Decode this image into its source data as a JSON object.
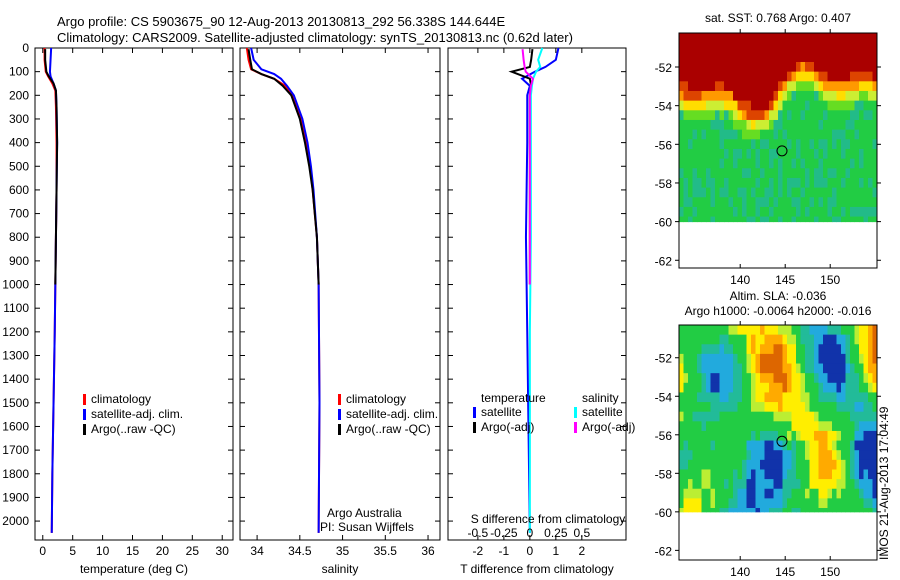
{
  "title_line1": "Argo profile: CS 5903675_90 12-Aug-2013 20130813_292 56.338S 144.644E",
  "title_line2": "Climatology: CARS2009. Satellite-adjusted climatology: synTS_20130813.nc (0.62d later)",
  "colors": {
    "climatology": "#ff0000",
    "satellite": "#0000ff",
    "argo": "#000000",
    "sal_satellite": "#00ffff",
    "sal_argo": "#ff00ff"
  },
  "chart_data": [
    {
      "type": "line",
      "name": "temperature",
      "xlabel": "temperature (deg C)",
      "ylabel": "depth",
      "xlim": [
        -1.3,
        31.8
      ],
      "ylim": [
        2080,
        0
      ],
      "xticks": [
        0,
        5,
        10,
        15,
        20,
        25,
        30
      ],
      "yticks": [
        0,
        100,
        200,
        300,
        400,
        500,
        600,
        700,
        800,
        900,
        1000,
        1100,
        1200,
        1300,
        1400,
        1500,
        1600,
        1700,
        1800,
        1900,
        2000
      ],
      "legend": [
        "climatology",
        "satellite-adj. clim.",
        "Argo(..raw -QC)"
      ],
      "series": [
        {
          "name": "climatology",
          "depth": [
            0,
            50,
            100,
            120,
            150,
            180,
            250,
            400,
            600,
            800,
            1000,
            1200,
            1500,
            1800,
            2050
          ],
          "values": [
            0.3,
            0.3,
            0.5,
            0.9,
            1.6,
            2.1,
            2.2,
            2.3,
            2.3,
            2.2,
            2.1,
            2.0,
            1.8,
            1.6,
            1.5
          ]
        },
        {
          "name": "satellite-adj. clim.",
          "depth": [
            0,
            50,
            100,
            120,
            150,
            180,
            250,
            400,
            600,
            800,
            1000,
            1200,
            1500,
            1800,
            2050
          ],
          "values": [
            1.4,
            1.3,
            1.2,
            1.3,
            1.8,
            2.2,
            2.3,
            2.4,
            2.3,
            2.2,
            2.1,
            2.0,
            1.8,
            1.6,
            1.5
          ]
        },
        {
          "name": "Argo(..raw -QC)",
          "depth": [
            5,
            50,
            100,
            120,
            150,
            180,
            250,
            400,
            600,
            800,
            1000
          ],
          "values": [
            0.4,
            0.4,
            0.6,
            1.0,
            1.8,
            2.2,
            2.3,
            2.4,
            2.3,
            2.2,
            2.1
          ]
        }
      ]
    },
    {
      "type": "line",
      "name": "salinity",
      "xlabel": "salinity",
      "xlim": [
        33.8,
        36.14
      ],
      "ylim": [
        2080,
        0
      ],
      "xticks": [
        34,
        34.5,
        35,
        35.5,
        36
      ],
      "legend": [
        "climatology",
        "satellite-adj. clim.",
        "Argo(..raw -QC)"
      ],
      "annotation": [
        "Argo Australia",
        "PI: Susan Wijffels"
      ],
      "series": [
        {
          "name": "climatology",
          "depth": [
            0,
            50,
            90,
            110,
            130,
            160,
            200,
            300,
            400,
            500,
            600,
            800,
            1000,
            1500,
            2050
          ],
          "values": [
            33.88,
            33.9,
            33.93,
            34.05,
            34.2,
            34.33,
            34.42,
            34.52,
            34.58,
            34.62,
            34.65,
            34.7,
            34.72,
            34.73,
            34.72
          ]
        },
        {
          "name": "satellite-adj. clim.",
          "depth": [
            0,
            50,
            90,
            110,
            130,
            160,
            200,
            300,
            400,
            500,
            600,
            800,
            1000,
            1500,
            2050
          ],
          "values": [
            33.93,
            33.96,
            34.05,
            34.2,
            34.28,
            34.35,
            34.43,
            34.53,
            34.59,
            34.63,
            34.66,
            34.7,
            34.72,
            34.73,
            34.72
          ]
        },
        {
          "name": "Argo(..raw -QC)",
          "depth": [
            5,
            50,
            90,
            110,
            130,
            160,
            200,
            300,
            400,
            500,
            600,
            800,
            1000
          ],
          "values": [
            33.9,
            33.92,
            33.94,
            34.05,
            34.2,
            34.3,
            34.4,
            34.5,
            34.56,
            34.61,
            34.65,
            34.7,
            34.72
          ]
        }
      ]
    },
    {
      "type": "line",
      "name": "difference",
      "xlabel": "T difference from climatology",
      "xlabel2": "S difference from climatology",
      "xlim": [
        -3.15,
        3.7
      ],
      "ylim": [
        2080,
        0
      ],
      "xticks": [
        -2,
        -1,
        0,
        1,
        2
      ],
      "xticks2": [
        "-0.5",
        "-0.25",
        "0",
        "0.25",
        "0.5"
      ],
      "legend_titles": [
        "temperature",
        "salinity"
      ],
      "legend": [
        "satellite",
        "Argo(-adj)",
        "satellite",
        "Argo(-adj)"
      ],
      "series": [
        {
          "name": "temperature satellite",
          "depth": [
            0,
            50,
            80,
            100,
            130,
            160,
            200,
            400,
            800,
            1200,
            2050
          ],
          "values": [
            1.1,
            1.0,
            0.6,
            0.2,
            -0.3,
            0.0,
            -0.1,
            -0.1,
            -0.15,
            -0.1,
            0.0
          ]
        },
        {
          "name": "temperature Argo(-adj)",
          "depth": [
            5,
            50,
            80,
            100,
            130,
            160,
            200,
            400,
            800,
            1000
          ],
          "values": [
            0.1,
            0.05,
            0.0,
            -0.7,
            0.0,
            0.05,
            0.0,
            0.0,
            0.0,
            0.0
          ]
        },
        {
          "name": "salinity satellite",
          "depth": [
            0,
            50,
            80,
            100,
            130,
            160,
            200,
            400,
            800,
            1200,
            2050
          ],
          "values": [
            0.12,
            0.08,
            0.1,
            0.06,
            0.03,
            0.02,
            0.01,
            0.01,
            0.01,
            0.0,
            0.0
          ]
        },
        {
          "name": "salinity Argo(-adj)",
          "depth": [
            5,
            50,
            80,
            100,
            130,
            160,
            200,
            400,
            800,
            1000
          ],
          "values": [
            -0.07,
            -0.06,
            -0.05,
            -0.04,
            0.03,
            0.01,
            0.0,
            0.0,
            0.0,
            0.0
          ]
        }
      ]
    },
    {
      "type": "heatmap",
      "name": "sst-map",
      "title": "sat. SST: 0.768 Argo: 0.407",
      "xlim": [
        133.2,
        155.2
      ],
      "ylim": [
        -62.4,
        -50.24
      ],
      "xticks": [
        140,
        145,
        150
      ],
      "yticks": [
        -52,
        -54,
        -56,
        -58,
        -60,
        -62
      ],
      "data_south_limit": -60,
      "marker": {
        "lon": 144.644,
        "lat": -56.338
      }
    },
    {
      "type": "heatmap",
      "name": "sla-map",
      "title": "Altim. SLA: -0.036",
      "subtitle": "Argo h1000: -0.0064 h2000: -0.016",
      "xlim": [
        133.2,
        155.2
      ],
      "ylim": [
        -62.5,
        -50.3
      ],
      "xticks": [
        140,
        145,
        150
      ],
      "yticks": [
        -52,
        -54,
        -56,
        -58,
        -60,
        -62
      ],
      "data_south_limit": -60,
      "marker": {
        "lon": 144.644,
        "lat": -56.338
      }
    }
  ],
  "credit": "IMOS 21-Aug-2013 17:04:49"
}
